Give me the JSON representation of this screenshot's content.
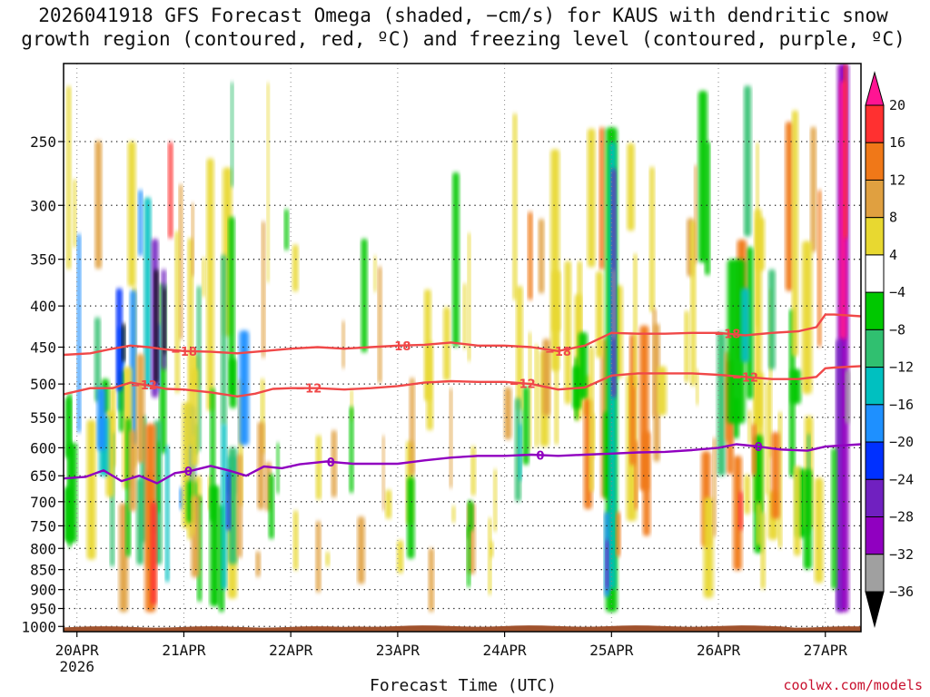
{
  "title_line1": "2026041918 GFS Forecast Omega (shaded, −cm/s) for KAUS with dendritic snow",
  "title_line2": "growth region (contoured, red, ºC) and freezing level (contoured, purple, ºC)",
  "credit": "coolwx.com/models",
  "chart_data": {
    "type": "heatmap",
    "xlabel": "Forecast Time (UTC)",
    "ylabel": "",
    "x_ticks": [
      {
        "label": "20APR",
        "sub": "2026",
        "hour": 0
      },
      {
        "label": "21APR",
        "sub": "",
        "hour": 24
      },
      {
        "label": "22APR",
        "sub": "",
        "hour": 48
      },
      {
        "label": "23APR",
        "sub": "",
        "hour": 72
      },
      {
        "label": "24APR",
        "sub": "",
        "hour": 96
      },
      {
        "label": "25APR",
        "sub": "",
        "hour": 120
      },
      {
        "label": "26APR",
        "sub": "",
        "hour": 144
      },
      {
        "label": "27APR",
        "sub": "",
        "hour": 168
      }
    ],
    "x_range_hours": [
      -3,
      176
    ],
    "y_ticks": [
      250,
      300,
      350,
      400,
      450,
      500,
      550,
      600,
      650,
      700,
      750,
      800,
      850,
      900,
      950,
      1000
    ],
    "y_range_hPa": [
      200,
      1015
    ],
    "y_scale": "log-pressure",
    "grid": true,
    "colorbar": {
      "levels": [
        20,
        16,
        12,
        8,
        4,
        -4,
        -8,
        -12,
        -16,
        -20,
        -24,
        -28,
        -32,
        -36
      ],
      "level_labels": [
        "20",
        "16",
        "12",
        "8",
        "4",
        "−4",
        "−8",
        "−12",
        "−16",
        "−20",
        "−24",
        "−28",
        "−32",
        "−36"
      ],
      "colors_top_to_bottom": [
        "#ff1493",
        "#ff3030",
        "#f07818",
        "#e0a040",
        "#e8d830",
        "#ffffff",
        "#00c800",
        "#30c070",
        "#00c0c0",
        "#1e90ff",
        "#0030ff",
        "#7020c0",
        "#9000c0",
        "#a0a0a0",
        "#000000"
      ]
    },
    "contours": [
      {
        "value": -18,
        "label": "−18",
        "color": "#f04848",
        "points": [
          [
            -3,
            460
          ],
          [
            3,
            458
          ],
          [
            8,
            452
          ],
          [
            12,
            448
          ],
          [
            16,
            450
          ],
          [
            20,
            453
          ],
          [
            24,
            455
          ],
          [
            30,
            456
          ],
          [
            36,
            458
          ],
          [
            42,
            455
          ],
          [
            48,
            452
          ],
          [
            54,
            450
          ],
          [
            60,
            452
          ],
          [
            66,
            450
          ],
          [
            72,
            448
          ],
          [
            78,
            447
          ],
          [
            84,
            444
          ],
          [
            90,
            448
          ],
          [
            96,
            448
          ],
          [
            102,
            450
          ],
          [
            108,
            455
          ],
          [
            114,
            448
          ],
          [
            120,
            432
          ],
          [
            126,
            433
          ],
          [
            132,
            433
          ],
          [
            138,
            432
          ],
          [
            144,
            432
          ],
          [
            150,
            435
          ],
          [
            156,
            432
          ],
          [
            162,
            430
          ],
          [
            166,
            425
          ],
          [
            168,
            410
          ],
          [
            170,
            410
          ],
          [
            176,
            412
          ]
        ],
        "label_hours": [
          24,
          72,
          108,
          146
        ]
      },
      {
        "value": -12,
        "label": "−12",
        "color": "#f04848",
        "points": [
          [
            -3,
            515
          ],
          [
            3,
            506
          ],
          [
            8,
            506
          ],
          [
            12,
            498
          ],
          [
            16,
            502
          ],
          [
            20,
            507
          ],
          [
            24,
            508
          ],
          [
            30,
            512
          ],
          [
            36,
            518
          ],
          [
            40,
            514
          ],
          [
            44,
            507
          ],
          [
            48,
            506
          ],
          [
            54,
            506
          ],
          [
            60,
            508
          ],
          [
            66,
            506
          ],
          [
            72,
            503
          ],
          [
            78,
            498
          ],
          [
            84,
            496
          ],
          [
            90,
            497
          ],
          [
            96,
            497
          ],
          [
            102,
            500
          ],
          [
            108,
            508
          ],
          [
            114,
            505
          ],
          [
            120,
            488
          ],
          [
            126,
            485
          ],
          [
            132,
            485
          ],
          [
            138,
            485
          ],
          [
            144,
            487
          ],
          [
            150,
            490
          ],
          [
            156,
            493
          ],
          [
            162,
            493
          ],
          [
            166,
            490
          ],
          [
            168,
            478
          ],
          [
            170,
            477
          ],
          [
            176,
            475
          ]
        ],
        "label_hours": [
          15,
          52,
          100,
          150
        ]
      },
      {
        "value": 0,
        "label": "0",
        "color": "#9000c0",
        "points": [
          [
            -3,
            655
          ],
          [
            2,
            652
          ],
          [
            6,
            640
          ],
          [
            10,
            660
          ],
          [
            14,
            650
          ],
          [
            18,
            664
          ],
          [
            22,
            645
          ],
          [
            26,
            640
          ],
          [
            30,
            632
          ],
          [
            34,
            640
          ],
          [
            38,
            650
          ],
          [
            42,
            633
          ],
          [
            46,
            636
          ],
          [
            50,
            629
          ],
          [
            56,
            624
          ],
          [
            62,
            628
          ],
          [
            68,
            628
          ],
          [
            72,
            628
          ],
          [
            78,
            622
          ],
          [
            84,
            617
          ],
          [
            90,
            614
          ],
          [
            96,
            614
          ],
          [
            102,
            612
          ],
          [
            108,
            614
          ],
          [
            114,
            612
          ],
          [
            120,
            610
          ],
          [
            126,
            608
          ],
          [
            132,
            607
          ],
          [
            138,
            604
          ],
          [
            144,
            600
          ],
          [
            148,
            594
          ],
          [
            152,
            597
          ],
          [
            158,
            603
          ],
          [
            164,
            605
          ],
          [
            168,
            598
          ],
          [
            176,
            594
          ]
        ],
        "label_hours": [
          25,
          57,
          104,
          153
        ]
      }
    ]
  }
}
